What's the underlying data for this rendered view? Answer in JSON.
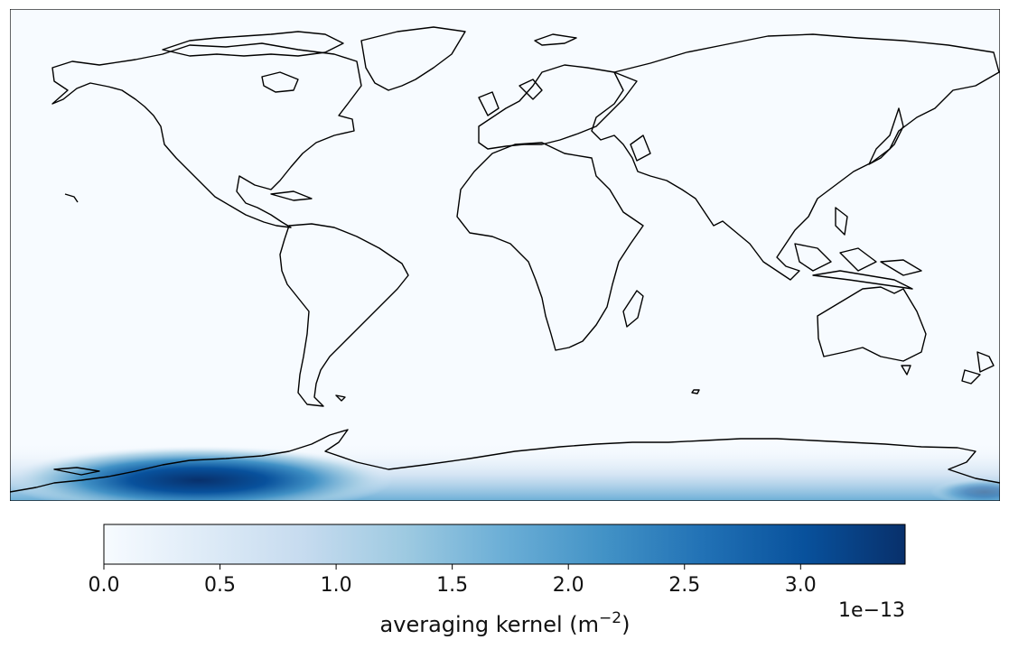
{
  "chart_data": {
    "type": "heatmap",
    "projection": "plate-carree-global",
    "background_colormap": "Blues",
    "field_description_shown": "averaging kernel concentrated near Antarctica (south-western hemisphere, ~lon -120, lat -80)",
    "colorbar": {
      "orientation": "horizontal",
      "position": "bottom",
      "vmin": 0.0,
      "vmax": 3.45,
      "ticks": [
        0.0,
        0.5,
        1.0,
        1.5,
        2.0,
        2.5,
        3.0
      ],
      "tick_labels": [
        "0.0",
        "0.5",
        "1.0",
        "1.5",
        "2.0",
        "2.5",
        "3.0"
      ],
      "offset_text": "1e−13",
      "label_text": "averaging kernel (m",
      "label_sup": "−2",
      "label_close": ")",
      "colors": [
        "#f7fbff",
        "#deebf7",
        "#c6dbef",
        "#9ecae1",
        "#6baed6",
        "#4292c6",
        "#2171b5",
        "#08519c",
        "#08306b"
      ]
    },
    "grid": false,
    "coastlines": true
  }
}
